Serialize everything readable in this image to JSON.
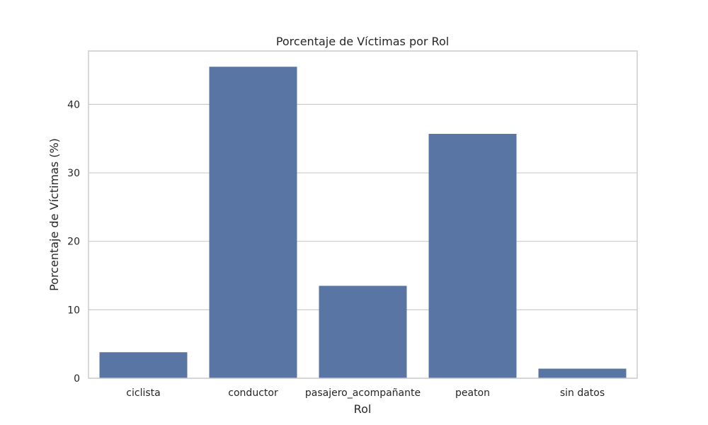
{
  "chart_data": {
    "type": "bar",
    "title": "Porcentaje de Víctimas por Rol",
    "xlabel": "Rol",
    "ylabel": "Porcentaje de Víctimas (%)",
    "categories": [
      "ciclista",
      "conductor",
      "pasajero_acompañante",
      "peaton",
      "sin datos"
    ],
    "values": [
      3.8,
      45.5,
      13.5,
      35.7,
      1.4
    ],
    "ylim": [
      0,
      47.8
    ],
    "yticks": [
      0,
      10,
      20,
      30,
      40
    ],
    "grid": true,
    "bar_color": "#5975a4"
  }
}
